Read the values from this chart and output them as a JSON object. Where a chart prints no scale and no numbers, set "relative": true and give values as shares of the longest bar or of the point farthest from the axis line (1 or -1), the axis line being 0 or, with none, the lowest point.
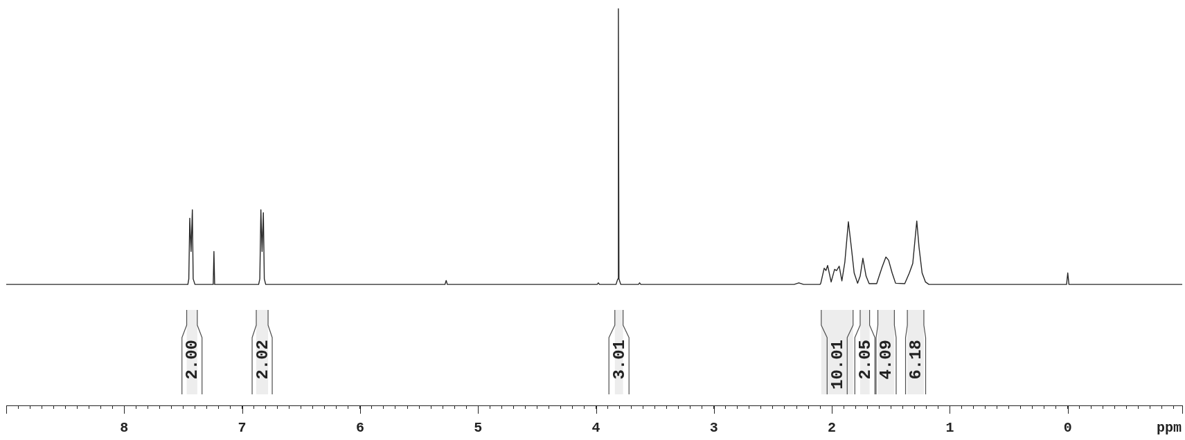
{
  "chart_data": {
    "type": "line",
    "relative": true,
    "xlabel": "ppm",
    "color": "#262626",
    "marker": "none",
    "line_style": "solid",
    "tick_labels": "x",
    "x": [
      9.0,
      7.46,
      7.452,
      7.444,
      7.433,
      7.422,
      7.415,
      7.4,
      7.245,
      7.239,
      7.233,
      6.86,
      6.85,
      6.841,
      6.831,
      6.82,
      6.812,
      6.8,
      5.28,
      5.27,
      5.26,
      3.99,
      3.98,
      3.97,
      3.83,
      3.815,
      3.81,
      3.805,
      3.79,
      3.64,
      3.63,
      3.62,
      2.32,
      2.28,
      2.24,
      2.1,
      2.094,
      2.065,
      2.05,
      2.036,
      2.006,
      1.977,
      1.96,
      1.938,
      1.915,
      1.89,
      1.86,
      1.835,
      1.811,
      1.782,
      1.76,
      1.737,
      1.71,
      1.684,
      1.62,
      1.577,
      1.542,
      1.519,
      1.489,
      1.46,
      1.382,
      1.343,
      1.314,
      1.28,
      1.261,
      1.235,
      1.206,
      1.177,
      0.01,
      0.0,
      -0.01,
      -0.97
    ],
    "values": [
      0.305,
      0.305,
      0.319,
      0.472,
      0.388,
      0.493,
      0.319,
      0.305,
      0.305,
      0.388,
      0.305,
      0.305,
      0.319,
      0.493,
      0.388,
      0.486,
      0.319,
      0.305,
      0.305,
      0.315,
      0.305,
      0.305,
      0.309,
      0.305,
      0.305,
      0.319,
      1,
      0.319,
      0.305,
      0.305,
      0.309,
      0.305,
      0.305,
      0.309,
      0.305,
      0.305,
      0.308,
      0.346,
      0.34,
      0.353,
      0.311,
      0.343,
      0.34,
      0.351,
      0.314,
      0.361,
      0.463,
      0.399,
      0.334,
      0.308,
      0.326,
      0.371,
      0.326,
      0.307,
      0.307,
      0.346,
      0.374,
      0.366,
      0.334,
      0.308,
      0.307,
      0.334,
      0.358,
      0.465,
      0.399,
      0.334,
      0.311,
      0.305,
      0.305,
      0.334,
      0.305,
      0.305
    ],
    "xlim": [
      9.0,
      -0.97
    ],
    "xticks": [
      {
        "value": 8.9,
        "label": null
      },
      {
        "value": 8.8,
        "label": null
      },
      {
        "value": 8.7,
        "label": null
      },
      {
        "value": 8.6,
        "label": null
      },
      {
        "value": 8.5,
        "label": null
      },
      {
        "value": 8.4,
        "label": null
      },
      {
        "value": 8.3,
        "label": null
      },
      {
        "value": 8.2,
        "label": null
      },
      {
        "value": 8.1,
        "label": null
      },
      8,
      {
        "value": 7.9,
        "label": null
      },
      {
        "value": 7.8,
        "label": null
      },
      {
        "value": 7.7,
        "label": null
      },
      {
        "value": 7.6,
        "label": null
      },
      {
        "value": 7.5,
        "label": null
      },
      {
        "value": 7.4,
        "label": null
      },
      {
        "value": 7.3,
        "label": null
      },
      {
        "value": 7.2,
        "label": null
      },
      {
        "value": 7.1,
        "label": null
      },
      7,
      {
        "value": 6.9,
        "label": null
      },
      {
        "value": 6.8,
        "label": null
      },
      {
        "value": 6.7,
        "label": null
      },
      {
        "value": 6.6,
        "label": null
      },
      {
        "value": 6.5,
        "label": null
      },
      {
        "value": 6.4,
        "label": null
      },
      {
        "value": 6.3,
        "label": null
      },
      {
        "value": 6.2,
        "label": null
      },
      {
        "value": 6.1,
        "label": null
      },
      6,
      {
        "value": 5.9,
        "label": null
      },
      {
        "value": 5.8,
        "label": null
      },
      {
        "value": 5.7,
        "label": null
      },
      {
        "value": 5.6,
        "label": null
      },
      {
        "value": 5.5,
        "label": null
      },
      {
        "value": 5.4,
        "label": null
      },
      {
        "value": 5.3,
        "label": null
      },
      {
        "value": 5.2,
        "label": null
      },
      {
        "value": 5.1,
        "label": null
      },
      5,
      {
        "value": 4.9,
        "label": null
      },
      {
        "value": 4.8,
        "label": null
      },
      {
        "value": 4.7,
        "label": null
      },
      {
        "value": 4.6,
        "label": null
      },
      {
        "value": 4.5,
        "label": null
      },
      {
        "value": 4.4,
        "label": null
      },
      {
        "value": 4.3,
        "label": null
      },
      {
        "value": 4.2,
        "label": null
      },
      {
        "value": 4.1,
        "label": null
      },
      4,
      {
        "value": 3.9,
        "label": null
      },
      {
        "value": 3.8,
        "label": null
      },
      {
        "value": 3.7,
        "label": null
      },
      {
        "value": 3.6,
        "label": null
      },
      {
        "value": 3.5,
        "label": null
      },
      {
        "value": 3.4,
        "label": null
      },
      {
        "value": 3.3,
        "label": null
      },
      {
        "value": 3.2,
        "label": null
      },
      {
        "value": 3.1,
        "label": null
      },
      3,
      {
        "value": 2.9,
        "label": null
      },
      {
        "value": 2.8,
        "label": null
      },
      {
        "value": 2.7,
        "label": null
      },
      {
        "value": 2.6,
        "label": null
      },
      {
        "value": 2.5,
        "label": null
      },
      {
        "value": 2.4,
        "label": null
      },
      {
        "value": 2.3,
        "label": null
      },
      {
        "value": 2.2,
        "label": null
      },
      {
        "value": 2.1,
        "label": null
      },
      2,
      {
        "value": 1.9,
        "label": null
      },
      {
        "value": 1.8,
        "label": null
      },
      {
        "value": 1.7,
        "label": null
      },
      {
        "value": 1.6,
        "label": null
      },
      {
        "value": 1.5,
        "label": null
      },
      {
        "value": 1.4,
        "label": null
      },
      {
        "value": 1.3,
        "label": null
      },
      {
        "value": 1.2,
        "label": null
      },
      {
        "value": 1.1,
        "label": null
      },
      1,
      {
        "value": 0.9,
        "label": null
      },
      {
        "value": 0.8,
        "label": null
      },
      {
        "value": 0.7,
        "label": null
      },
      {
        "value": 0.6,
        "label": null
      },
      {
        "value": 0.5,
        "label": null
      },
      {
        "value": 0.4,
        "label": null
      },
      {
        "value": 0.3,
        "label": null
      },
      {
        "value": 0.2,
        "label": null
      },
      {
        "value": 0.1,
        "label": null
      },
      0,
      {
        "value": -0.1,
        "label": null
      },
      {
        "value": -0.2,
        "label": null
      },
      {
        "value": -0.3,
        "label": null
      },
      {
        "value": -0.4,
        "label": null
      },
      {
        "value": -0.5,
        "label": null
      },
      {
        "value": -0.6,
        "label": null
      },
      {
        "value": -0.7,
        "label": null
      },
      {
        "value": -0.8,
        "label": null
      },
      {
        "value": -0.9,
        "label": null
      }
    ],
    "bands": [
      {
        "axis": "x",
        "from": 7.47,
        "to": 7.38,
        "label": "2.00",
        "color": "#ededed"
      },
      {
        "axis": "x",
        "from": 6.88,
        "to": 6.78,
        "label": "2.02",
        "color": "#ededed"
      },
      {
        "axis": "x",
        "from": 3.84,
        "to": 3.77,
        "label": "3.01",
        "color": "#ededed"
      },
      {
        "axis": "x",
        "from": 2.09,
        "to": 1.82,
        "label": "10.01",
        "color": "#ededed"
      },
      {
        "axis": "x",
        "from": 1.76,
        "to": 1.68,
        "label": "2.05",
        "color": "#ededed"
      },
      {
        "axis": "x",
        "from": 1.61,
        "to": 1.47,
        "label": "4.09",
        "color": "#ededed"
      },
      {
        "axis": "x",
        "from": 1.36,
        "to": 1.22,
        "label": "6.18",
        "color": "#ededed"
      }
    ]
  }
}
